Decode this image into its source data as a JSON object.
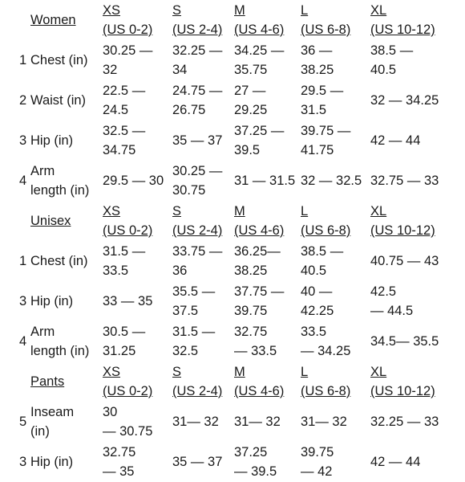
{
  "sections": [
    {
      "title": "Women",
      "sizes": [
        "XS\n(US 0-2)",
        "S\n(US 2-4)",
        "M\n(US 4-6)",
        "L\n(US 6-8)",
        "XL\n(US 10-12)"
      ],
      "rows": [
        {
          "num": "1",
          "label": "Chest (in)",
          "values": [
            "30.25 —\n32",
            "32.25 —\n34",
            "34.25 —\n35.75",
            "36 —\n38.25",
            "38.5 —\n40.5"
          ]
        },
        {
          "num": "2",
          "label": "Waist (in)",
          "values": [
            "22.5 —\n24.5",
            "24.75 —\n26.75",
            "27 —\n29.25",
            "29.5 —\n31.5",
            "32 — 34.25"
          ]
        },
        {
          "num": "3",
          "label": "Hip (in)",
          "values": [
            "32.5 —\n34.75",
            "35 — 37",
            "37.25 —\n39.5",
            "39.75 —\n41.75",
            "42 — 44"
          ]
        },
        {
          "num": "4",
          "label": "Arm\nlength (in)",
          "values": [
            "29.5 — 30",
            "30.25 —\n30.75",
            "31 — 31.5",
            "32 — 32.5",
            "32.75 — 33"
          ]
        }
      ]
    },
    {
      "title": "Unisex",
      "sizes": [
        "XS\n(US 0-2)",
        "S\n(US 2-4)",
        "M\n(US 4-6)",
        "L\n(US 6-8)",
        "XL\n(US 10-12)"
      ],
      "rows": [
        {
          "num": "1",
          "label": "Chest (in)",
          "values": [
            "31.5 —\n33.5",
            "33.75 —\n36",
            "36.25—\n38.25",
            "38.5 —\n40.5",
            "40.75 — 43"
          ]
        },
        {
          "num": "3",
          "label": "Hip (in)",
          "values": [
            "33 — 35",
            "35.5 —\n37.5",
            "37.75 —\n39.75",
            "40 —\n42.25",
            "42.5\n— 44.5"
          ]
        },
        {
          "num": "4",
          "label": "Arm\nlength (in)",
          "values": [
            "30.5 —\n31.25",
            "31.5 —\n32.5",
            "32.75\n— 33.5",
            "33.5\n— 34.25",
            "34.5— 35.5"
          ]
        }
      ]
    },
    {
      "title": "Pants",
      "sizes": [
        "XS\n(US 0-2)",
        "S\n(US 2-4)",
        "M\n(US 4-6)",
        "L\n(US 6-8)",
        "XL\n(US 10-12)"
      ],
      "rows": [
        {
          "num": "5",
          "label": "Inseam\n(in)",
          "values": [
            "30\n— 30.75",
            "31— 32",
            "31— 32",
            "31— 32",
            "32.25 — 33"
          ]
        },
        {
          "num": "3",
          "label": "Hip (in)",
          "values": [
            "32.75\n— 35",
            "35 — 37",
            "37.25\n— 39.5",
            "39.75\n— 42",
            "42 — 44"
          ]
        }
      ]
    }
  ]
}
